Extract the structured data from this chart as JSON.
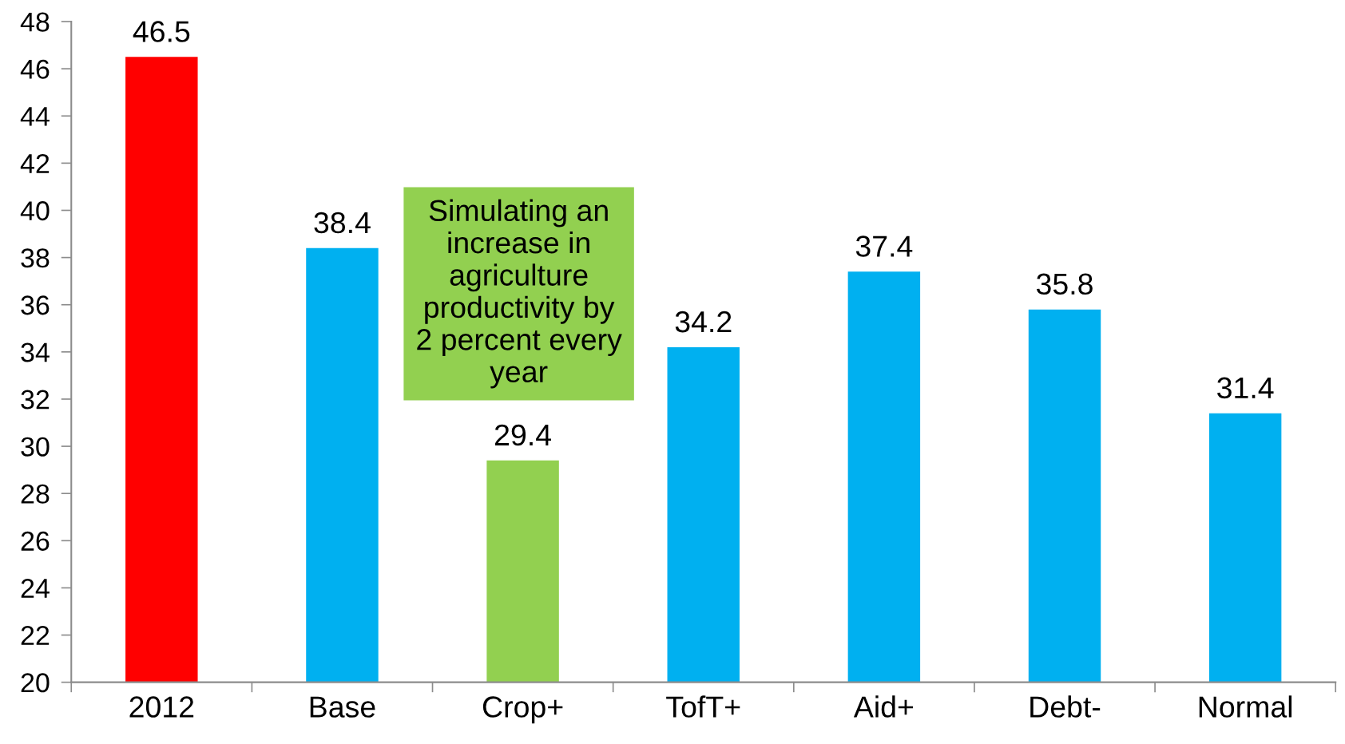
{
  "chart_data": {
    "type": "bar",
    "categories": [
      "2012",
      "Base",
      "Crop+",
      "TofT+",
      "Aid+",
      "Debt-",
      "Normal"
    ],
    "values": [
      46.5,
      38.4,
      29.4,
      34.2,
      37.4,
      35.8,
      31.4
    ],
    "colors": [
      "#ff0000",
      "#00b0f0",
      "#92d050",
      "#00b0f0",
      "#00b0f0",
      "#00b0f0",
      "#00b0f0"
    ],
    "ylim": [
      20,
      48
    ],
    "yticks": [
      20,
      22,
      24,
      26,
      28,
      30,
      32,
      34,
      36,
      38,
      40,
      42,
      44,
      46,
      48
    ],
    "data_labels": true,
    "grid": false,
    "legend": false,
    "annotations": [
      "Simulating an\nincrease in\nagriculture\nproductivity by\n2 percent every\nyear"
    ]
  }
}
